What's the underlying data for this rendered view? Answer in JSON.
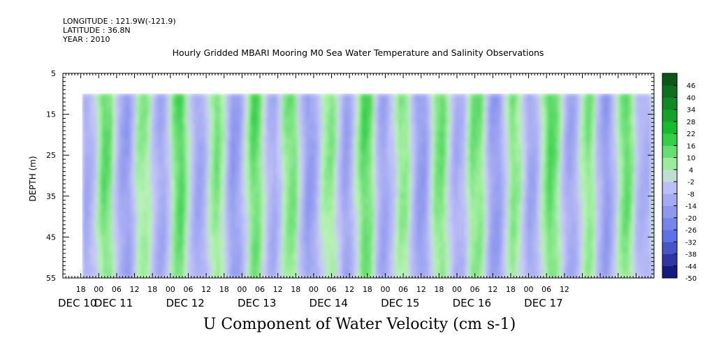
{
  "header": {
    "longitude": "LONGITUDE : 121.9W(-121.9)",
    "latitude": "LATITUDE : 36.8N",
    "year": "YEAR : 2010"
  },
  "chart_data": {
    "type": "heatmap",
    "title": "Hourly Gridded MBARI Mooring M0 Sea Water Temperature and Salinity Observations",
    "bottom_title": "U Component of Water Velocity (cm s-1)",
    "ylabel": "DEPTH (m)",
    "ylim": [
      5,
      55
    ],
    "y_inverted": true,
    "y_ticks": [
      5,
      15,
      25,
      35,
      45,
      55
    ],
    "data_depth_range": [
      10,
      55
    ],
    "x_range_hours": [
      0,
      198
    ],
    "hour_tick_labels": [
      "18",
      "00",
      "06",
      "12",
      "18",
      "00",
      "06",
      "12",
      "18",
      "00",
      "06",
      "12",
      "18",
      "00",
      "06",
      "12",
      "18",
      "00",
      "06",
      "12",
      "18",
      "00",
      "06",
      "12",
      "18",
      "00",
      "06",
      "12"
    ],
    "day_labels": [
      "DEC 10",
      "DEC 11",
      "DEC 12",
      "DEC 13",
      "DEC 14",
      "DEC 15",
      "DEC 16",
      "DEC 17"
    ],
    "colorbar_labels": [
      "46",
      "40",
      "34",
      "28",
      "22",
      "16",
      "10",
      "4",
      "-2",
      "-8",
      "-14",
      "-20",
      "-26",
      "-32",
      "-38",
      "-44",
      "-50"
    ],
    "colorbar_range": [
      -50,
      52
    ],
    "colorbar_step": 6,
    "colors": {
      "green_dark": "#0a4a14",
      "green_mid": "#18c832",
      "green_light": "#b6f4b0",
      "blue_light": "#c8c8f8",
      "blue_mid": "#5a6ee6",
      "blue_dark": "#0a0a6e"
    }
  }
}
